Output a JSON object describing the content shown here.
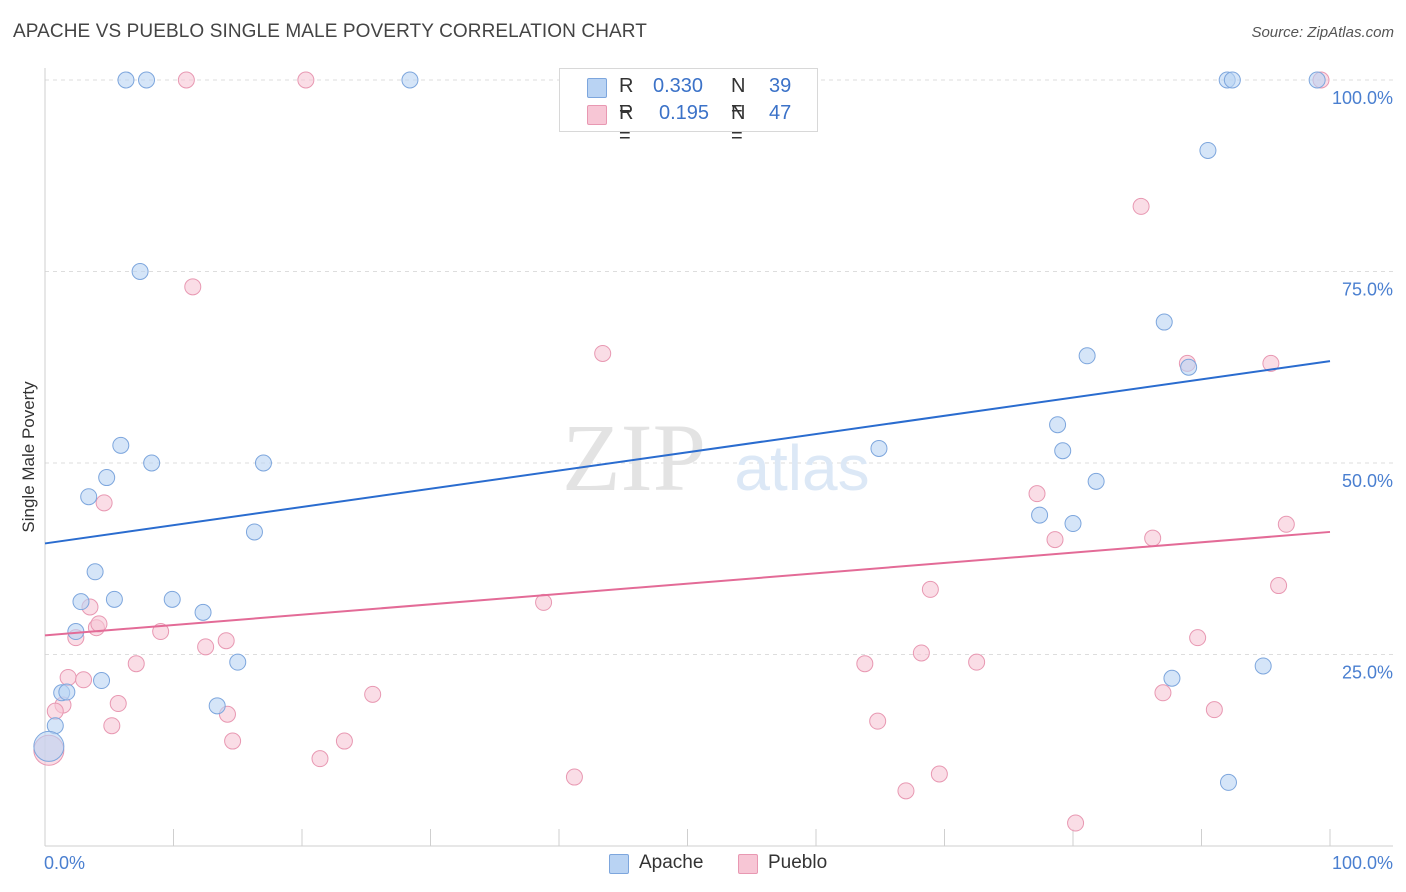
{
  "title": "APACHE VS PUEBLO SINGLE MALE POVERTY CORRELATION CHART",
  "source": "Source: ZipAtlas.com",
  "watermark": {
    "zip": "ZIP",
    "atlas": "atlas"
  },
  "legend": {
    "rows": [
      {
        "r_label": "R =",
        "r_value": "0.330",
        "n_label": "N =",
        "n_value": "39"
      },
      {
        "r_label": "R =",
        "r_value": "0.195",
        "n_label": "N =",
        "n_value": "47"
      }
    ]
  },
  "colors": {
    "apache_fill": "#b9d3f3",
    "apache_stroke": "#7da6dd",
    "apache_line": "#2a6ccf",
    "pueblo_fill": "#f7c6d5",
    "pueblo_stroke": "#e898b2",
    "pueblo_line": "#e36b97",
    "tick_label": "#4a7fd0",
    "grid": "#dddddd"
  },
  "chart_data": {
    "type": "scatter",
    "title": "APACHE VS PUEBLO SINGLE MALE POVERTY CORRELATION CHART",
    "xlabel": "",
    "ylabel": "Single Male Poverty",
    "xlim": [
      0,
      100
    ],
    "ylim": [
      0,
      104
    ],
    "x_tick_labels": [
      "0.0%",
      "100.0%"
    ],
    "y_tick_labels": [
      "25.0%",
      "50.0%",
      "75.0%",
      "100.0%"
    ],
    "y_ticks": [
      25,
      50,
      75,
      100
    ],
    "grid": "horizontal dashed",
    "legend_position": "top-center and bottom",
    "series": [
      {
        "name": "Apache",
        "r": 0.33,
        "n": 39,
        "trend": {
          "x": [
            0,
            100
          ],
          "y": [
            39.5,
            63.3
          ]
        },
        "points": [
          [
            6.3,
            100
          ],
          [
            7.9,
            100
          ],
          [
            28.4,
            100
          ],
          [
            92.0,
            100
          ],
          [
            92.4,
            100
          ],
          [
            99.0,
            100
          ],
          [
            90.5,
            90.8
          ],
          [
            7.4,
            75.0
          ],
          [
            87.1,
            68.4
          ],
          [
            81.1,
            64.0
          ],
          [
            89.0,
            62.5
          ],
          [
            5.9,
            52.3
          ],
          [
            8.3,
            50.0
          ],
          [
            17.0,
            50.0
          ],
          [
            64.9,
            51.9
          ],
          [
            78.8,
            55.0
          ],
          [
            79.2,
            51.6
          ],
          [
            81.8,
            47.6
          ],
          [
            4.8,
            48.1
          ],
          [
            3.4,
            45.6
          ],
          [
            16.3,
            41.0
          ],
          [
            77.4,
            43.2
          ],
          [
            80.0,
            42.1
          ],
          [
            3.9,
            35.8
          ],
          [
            2.8,
            31.9
          ],
          [
            5.4,
            32.2
          ],
          [
            9.9,
            32.2
          ],
          [
            12.3,
            30.5
          ],
          [
            2.4,
            28.0
          ],
          [
            4.4,
            21.6
          ],
          [
            1.3,
            20.0
          ],
          [
            1.7,
            20.1
          ],
          [
            15.0,
            24.0
          ],
          [
            13.4,
            18.3
          ],
          [
            0.8,
            15.7
          ],
          [
            87.7,
            21.9
          ],
          [
            94.8,
            23.5
          ],
          [
            92.1,
            8.3
          ],
          [
            0.3,
            13.0
          ]
        ]
      },
      {
        "name": "Pueblo",
        "r": 0.195,
        "n": 47,
        "trend": {
          "x": [
            0,
            100
          ],
          "y": [
            27.5,
            41.0
          ]
        },
        "points": [
          [
            11.0,
            100
          ],
          [
            20.3,
            100
          ],
          [
            99.3,
            100
          ],
          [
            11.5,
            73.0
          ],
          [
            85.3,
            83.5
          ],
          [
            43.4,
            64.3
          ],
          [
            88.9,
            63.0
          ],
          [
            95.4,
            63.0
          ],
          [
            77.2,
            46.0
          ],
          [
            4.6,
            44.8
          ],
          [
            78.6,
            40.0
          ],
          [
            86.2,
            40.2
          ],
          [
            96.6,
            42.0
          ],
          [
            96.0,
            34.0
          ],
          [
            68.9,
            33.5
          ],
          [
            3.5,
            31.2
          ],
          [
            38.8,
            31.8
          ],
          [
            2.4,
            27.2
          ],
          [
            4.0,
            28.5
          ],
          [
            4.2,
            29.0
          ],
          [
            9.0,
            28.0
          ],
          [
            12.5,
            26.0
          ],
          [
            14.1,
            26.8
          ],
          [
            7.1,
            23.8
          ],
          [
            63.8,
            23.8
          ],
          [
            68.2,
            25.2
          ],
          [
            72.5,
            24.0
          ],
          [
            89.7,
            27.2
          ],
          [
            1.8,
            22.0
          ],
          [
            3.0,
            21.7
          ],
          [
            1.4,
            18.4
          ],
          [
            0.8,
            17.6
          ],
          [
            5.7,
            18.6
          ],
          [
            14.2,
            17.2
          ],
          [
            25.5,
            19.8
          ],
          [
            87.0,
            20.0
          ],
          [
            91.0,
            17.8
          ],
          [
            5.2,
            15.7
          ],
          [
            14.6,
            13.7
          ],
          [
            23.3,
            13.7
          ],
          [
            64.8,
            16.3
          ],
          [
            21.4,
            11.4
          ],
          [
            41.2,
            9.0
          ],
          [
            69.6,
            9.4
          ],
          [
            67.0,
            7.2
          ],
          [
            80.2,
            3.0
          ],
          [
            0.3,
            12.5
          ]
        ]
      }
    ]
  },
  "bottom_legend": [
    "Apache",
    "Pueblo"
  ]
}
